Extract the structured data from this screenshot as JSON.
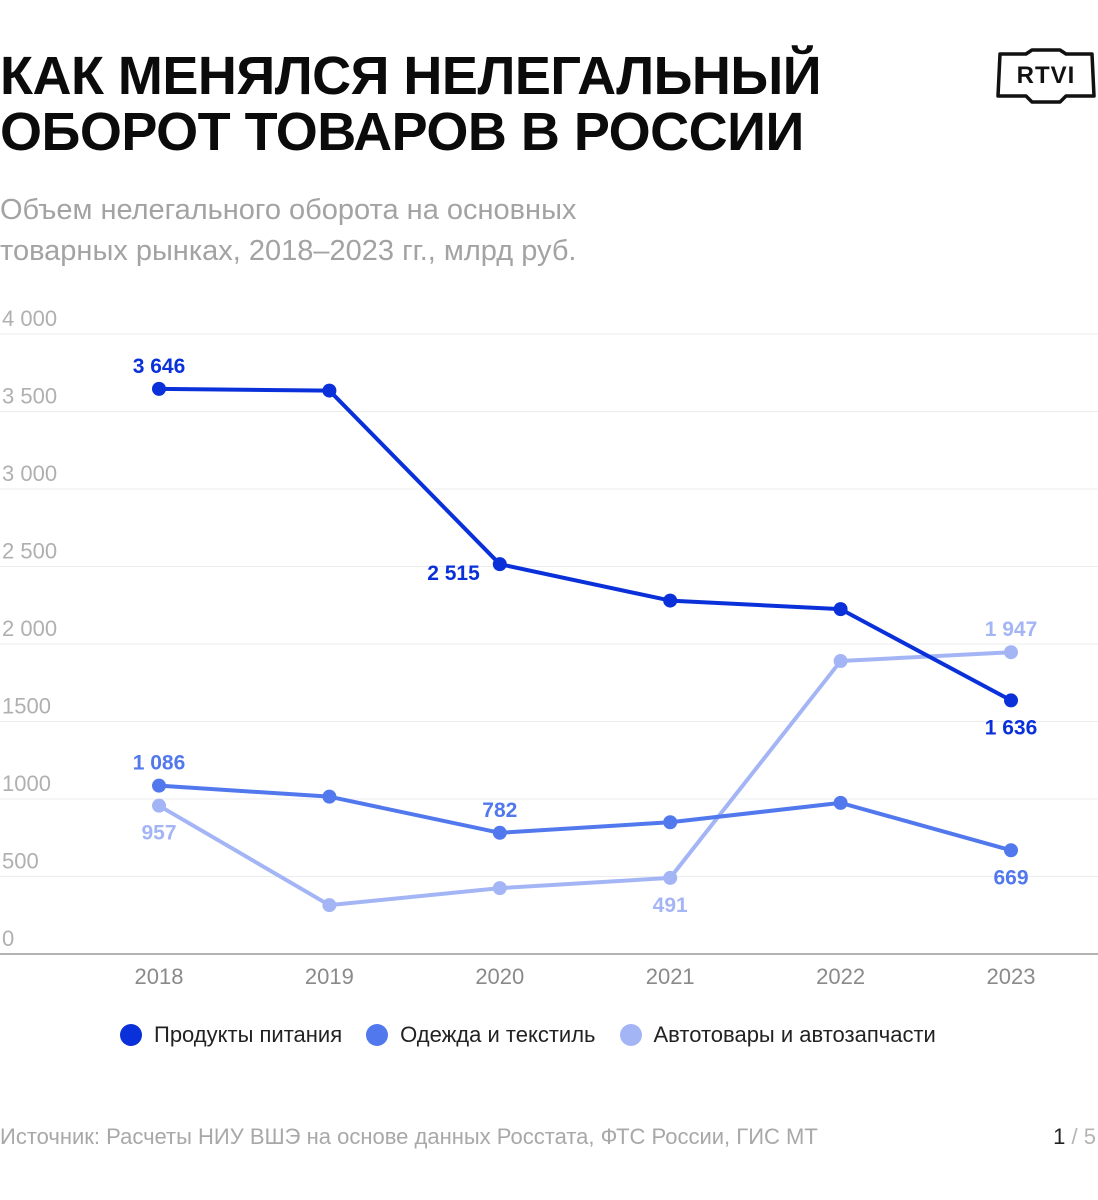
{
  "header": {
    "title_line1": "КАК МЕНЯЛСЯ НЕЛЕГАЛЬНЫЙ",
    "title_line2": "ОБОРОТ ТОВАРОВ В РОССИИ",
    "subtitle_line1": "Объем нелегального оборота на основных",
    "subtitle_line2": "товарных рынках, 2018–2023 гг., млрд руб.",
    "logo_text": "RTVI"
  },
  "chart_data": {
    "type": "line",
    "categories": [
      "2018",
      "2019",
      "2020",
      "2021",
      "2022",
      "2023"
    ],
    "ylim": [
      0,
      4000
    ],
    "yticks": [
      0,
      500,
      1000,
      1500,
      2000,
      2500,
      3000,
      3500,
      4000
    ],
    "ytick_labels": [
      "0",
      "500",
      "1000",
      "1500",
      "2 000",
      "2 500",
      "3 000",
      "3 500",
      "4 000"
    ],
    "grid": true,
    "legend_position": "bottom",
    "series": [
      {
        "name": "Продукты питания",
        "color": "#0a31d9",
        "values": [
          3646,
          3635,
          2515,
          2280,
          2225,
          1636
        ],
        "labels": [
          "3 646",
          "",
          "2 515",
          "",
          "",
          "1 636"
        ],
        "label_pos": [
          "above",
          "",
          "below-left",
          "",
          "",
          "below"
        ]
      },
      {
        "name": "Одежда и текстиль",
        "color": "#5278ee",
        "values": [
          1086,
          1015,
          782,
          850,
          975,
          669
        ],
        "labels": [
          "1 086",
          "",
          "782",
          "",
          "",
          "669"
        ],
        "label_pos": [
          "above",
          "",
          "above",
          "",
          "",
          "below"
        ]
      },
      {
        "name": "Автотовары и автозапчасти",
        "color": "#a4b5f6",
        "values": [
          957,
          315,
          425,
          491,
          1890,
          1947
        ],
        "labels": [
          "957",
          "",
          "",
          "491",
          "",
          "1 947"
        ],
        "label_pos": [
          "below",
          "",
          "",
          "below",
          "",
          "above"
        ]
      }
    ]
  },
  "footer": {
    "source": "Источник: Расчеты НИУ ВШЭ на основе данных Росстата, ФТС России, ГИС МТ",
    "page_current": "1",
    "page_rest": " / 5"
  }
}
